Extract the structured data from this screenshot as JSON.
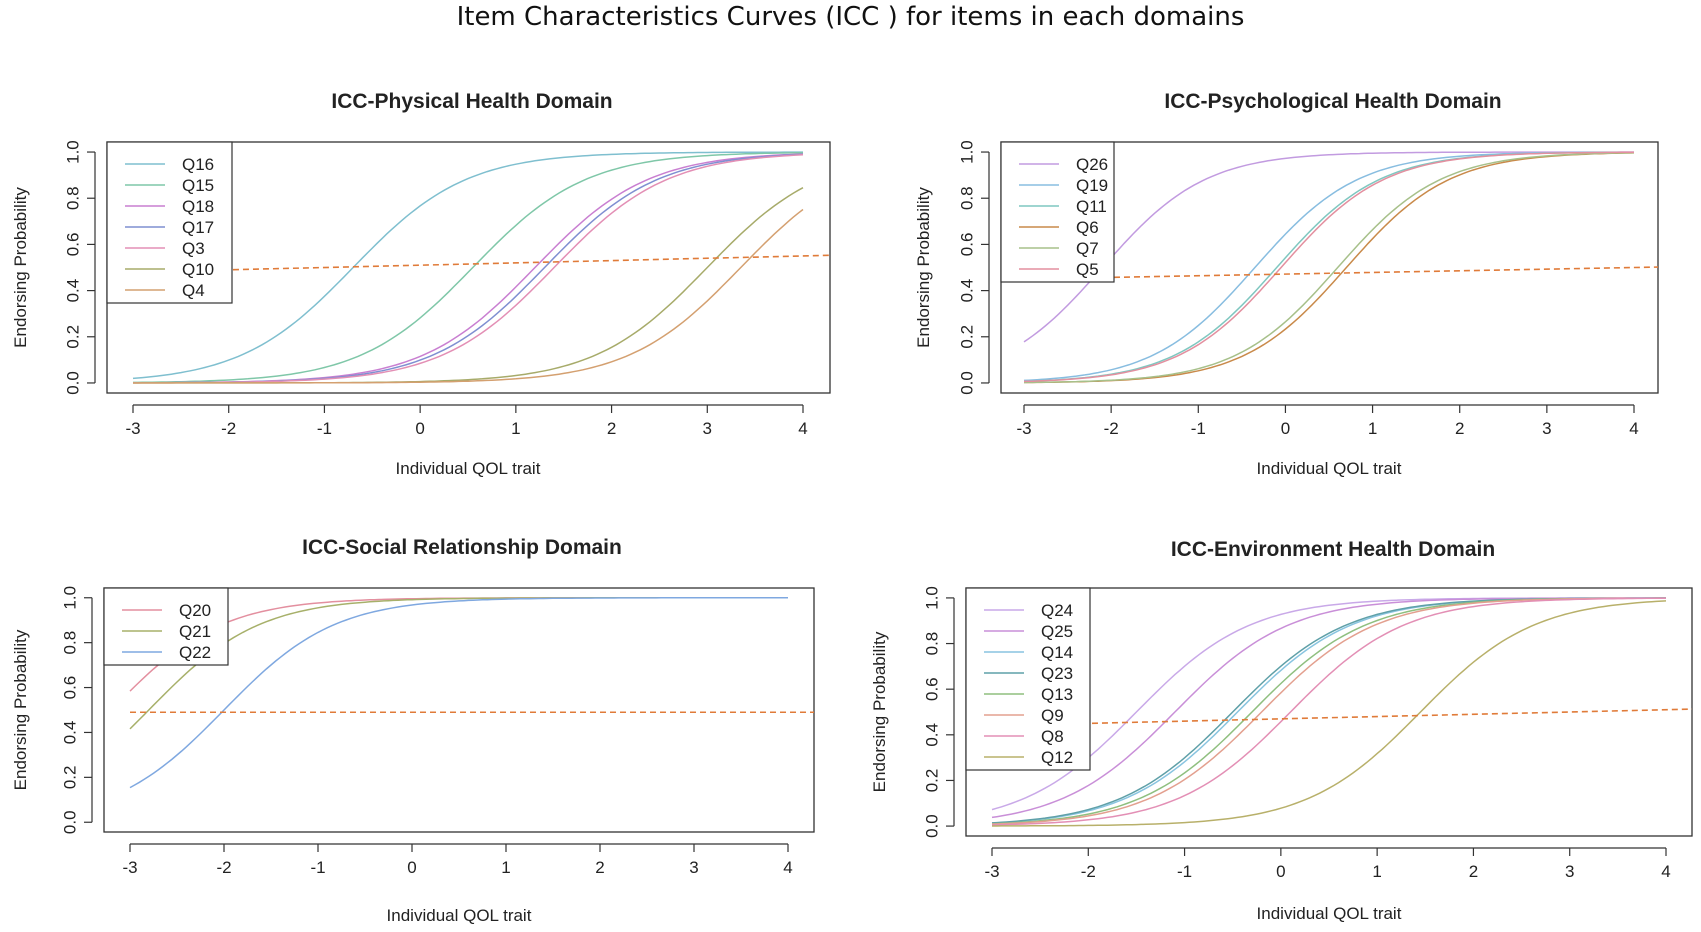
{
  "title": "Item Characteristics Curves (ICC ) for items in each domains",
  "chart_data": [
    {
      "type": "line",
      "title": "ICC-Physical Health Domain",
      "xlabel": "Individual QOL trait",
      "ylabel": "Endorsing Probability",
      "xlim": [
        -3,
        4
      ],
      "ylim": [
        0,
        1
      ],
      "xticks": [
        "-3",
        "-2",
        "-1",
        "0",
        "1",
        "2",
        "3",
        "4"
      ],
      "yticks": [
        "0.0",
        "0.2",
        "0.4",
        "0.6",
        "0.8",
        "1.0"
      ],
      "legend_position": "top-left",
      "reference_line": {
        "y_at_xmin": 0.48,
        "y_at_xmax": 0.55,
        "color": "#e07b39"
      },
      "series": [
        {
          "name": "Q16",
          "color": "#7fbfcf",
          "a": 1.0,
          "b": -0.7
        },
        {
          "name": "Q15",
          "color": "#7fc7a8",
          "a": 1.0,
          "b": 0.55
        },
        {
          "name": "Q18",
          "color": "#c97fd1",
          "a": 1.0,
          "b": 1.2
        },
        {
          "name": "Q17",
          "color": "#7f8fd1",
          "a": 1.0,
          "b": 1.3
        },
        {
          "name": "Q3",
          "color": "#e38fb5",
          "a": 1.0,
          "b": 1.4
        },
        {
          "name": "Q10",
          "color": "#a7ab6a",
          "a": 1.0,
          "b": 3.0
        },
        {
          "name": "Q4",
          "color": "#d4a070",
          "a": 1.0,
          "b": 3.35
        }
      ]
    },
    {
      "type": "line",
      "title": "ICC-Psychological Health Domain",
      "xlabel": "Individual QOL trait",
      "ylabel": "Endorsing Probability",
      "xlim": [
        -3,
        4
      ],
      "ylim": [
        0,
        1
      ],
      "xticks": [
        "-3",
        "-2",
        "-1",
        "0",
        "1",
        "2",
        "3",
        "4"
      ],
      "yticks": [
        "0.0",
        "0.2",
        "0.4",
        "0.6",
        "0.8",
        "1.0"
      ],
      "legend_position": "top-left",
      "reference_line": {
        "y_at_xmin": 0.45,
        "y_at_xmax": 0.5,
        "color": "#e07b39"
      },
      "series": [
        {
          "name": "Q26",
          "color": "#c29be0",
          "a": 1.0,
          "b": -2.1
        },
        {
          "name": "Q19",
          "color": "#88bde0",
          "a": 1.0,
          "b": -0.35
        },
        {
          "name": "Q11",
          "color": "#7fc7c0",
          "a": 1.0,
          "b": -0.1
        },
        {
          "name": "Q6",
          "color": "#c98a4a",
          "a": 1.0,
          "b": 0.7
        },
        {
          "name": "Q7",
          "color": "#a7c08a",
          "a": 1.0,
          "b": 0.6
        },
        {
          "name": "Q5",
          "color": "#e38f9f",
          "a": 1.0,
          "b": -0.05
        }
      ]
    },
    {
      "type": "line",
      "title": "ICC-Social Relationship Domain",
      "xlabel": "Individual QOL trait",
      "ylabel": "Endorsing Probability",
      "xlim": [
        -3,
        4
      ],
      "ylim": [
        0,
        1
      ],
      "xticks": [
        "-3",
        "-2",
        "-1",
        "0",
        "1",
        "2",
        "3",
        "4"
      ],
      "yticks": [
        "0.0",
        "0.2",
        "0.4",
        "0.6",
        "0.8",
        "1.0"
      ],
      "legend_position": "top-left",
      "reference_line": {
        "y_at_xmin": 0.49,
        "y_at_xmax": 0.49,
        "color": "#e07b39"
      },
      "series": [
        {
          "name": "Q20",
          "color": "#e38f9f",
          "a": 1.0,
          "b": -3.2
        },
        {
          "name": "Q21",
          "color": "#a7b06a",
          "a": 1.0,
          "b": -2.8
        },
        {
          "name": "Q22",
          "color": "#7fa8e0",
          "a": 1.0,
          "b": -2.0
        }
      ]
    },
    {
      "type": "line",
      "title": "ICC-Environment Health Domain",
      "xlabel": "Individual QOL trait",
      "ylabel": "Endorsing Probability",
      "xlim": [
        -3,
        4
      ],
      "ylim": [
        0,
        1
      ],
      "xticks": [
        "-3",
        "-2",
        "-1",
        "0",
        "1",
        "2",
        "3",
        "4"
      ],
      "yticks": [
        "0.0",
        "0.2",
        "0.4",
        "0.6",
        "0.8",
        "1.0"
      ],
      "legend_position": "top-left",
      "reference_line": {
        "y_at_xmin": 0.44,
        "y_at_xmax": 0.51,
        "color": "#e07b39"
      },
      "series": [
        {
          "name": "Q24",
          "color": "#c9a9e8",
          "a": 1.0,
          "b": -1.5
        },
        {
          "name": "Q25",
          "color": "#c98fd8",
          "a": 1.0,
          "b": -1.1
        },
        {
          "name": "Q14",
          "color": "#88c4e0",
          "a": 1.0,
          "b": -0.45
        },
        {
          "name": "Q23",
          "color": "#5fa0a8",
          "a": 1.0,
          "b": -0.5
        },
        {
          "name": "Q13",
          "color": "#8fbf7f",
          "a": 1.0,
          "b": -0.3
        },
        {
          "name": "Q9",
          "color": "#e3a08f",
          "a": 1.0,
          "b": -0.2
        },
        {
          "name": "Q8",
          "color": "#e38fb5",
          "a": 1.0,
          "b": 0.1
        },
        {
          "name": "Q12",
          "color": "#b8b06a",
          "a": 1.0,
          "b": 1.45
        }
      ]
    }
  ]
}
